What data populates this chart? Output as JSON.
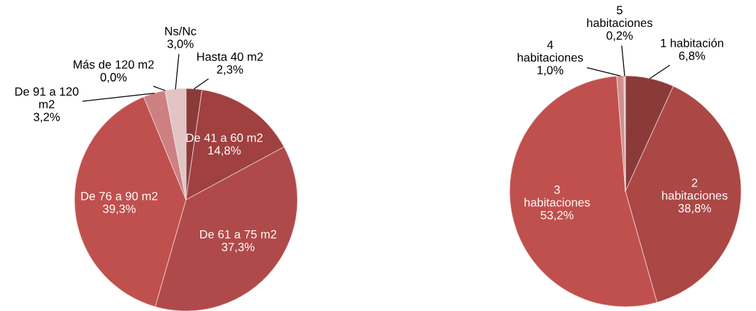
{
  "chart_data": [
    {
      "type": "pie",
      "categories": [
        "Hasta 40 m2",
        "De 41 a 60 m2",
        "De 61 a 75 m2",
        "De 76 a 90 m2",
        "De 91 a 120 m2",
        "Más de 120 m2",
        "Ns/Nc"
      ],
      "values": [
        2.3,
        14.8,
        37.3,
        39.3,
        3.2,
        0.0,
        3.0
      ],
      "value_labels": [
        "2,3%",
        "14,8%",
        "37,3%",
        "39,3%",
        "3,2%",
        "0,0%",
        "3,0%"
      ],
      "colors": [
        "#8b3a3a",
        "#a04040",
        "#b04a4a",
        "#c0504d",
        "#cd8080",
        "#d9a8a8",
        "#e2c4c4"
      ]
    },
    {
      "type": "pie",
      "categories": [
        "1 habitación",
        "2 habitaciones",
        "3 habitaciones",
        "4 habitaciones",
        "5 habitaciones"
      ],
      "values": [
        6.8,
        38.8,
        53.2,
        1.0,
        0.2
      ],
      "value_labels": [
        "6,8%",
        "38,8%",
        "53,2%",
        "1,0%",
        "0,2%"
      ],
      "colors": [
        "#8b3a3a",
        "#ab4745",
        "#c0504d",
        "#d09090",
        "#e2c4c4"
      ]
    }
  ]
}
